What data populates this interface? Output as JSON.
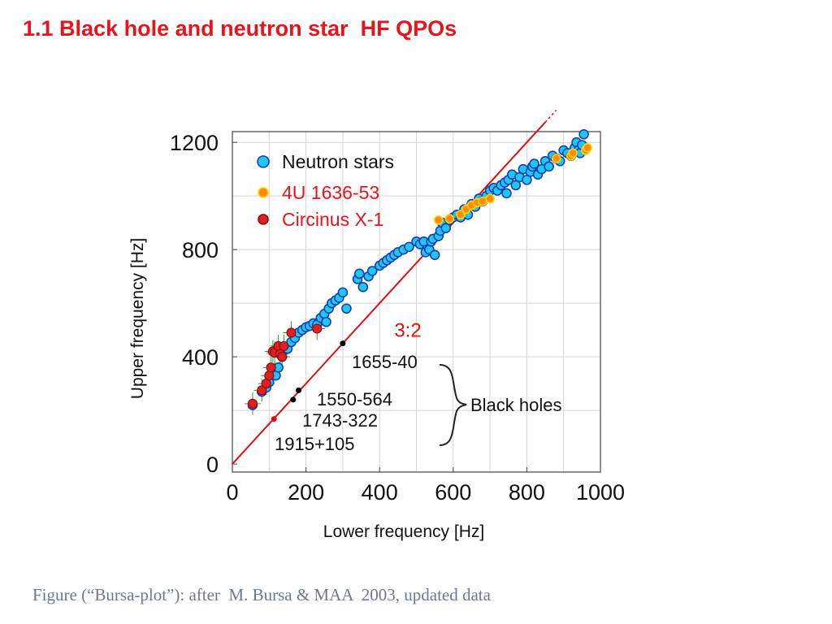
{
  "slide": {
    "title": "1.1 Black hole and neutron star  HF QPOs",
    "caption": "Figure (“Bursa-plot”): after  M. Bursa & MAA  2003, updated data"
  },
  "chart_data": {
    "type": "scatter",
    "title": "",
    "xlabel": "Lower frequency [Hz]",
    "ylabel": "Upper frequency [Hz]",
    "xlim": [
      0,
      1000
    ],
    "ylim": [
      -30,
      1240
    ],
    "xticks": [
      "0",
      "200",
      "400",
      "600",
      "800",
      "1000"
    ],
    "yticks": [
      "0",
      "400",
      "800",
      "1200"
    ],
    "ratio_line": {
      "label": "3:2",
      "slope": 1.5,
      "color": "#e01010"
    },
    "series": [
      {
        "name": "Neutron stars",
        "color": "#1ec8f5",
        "edge": "#1a3fb0",
        "x": [
          55,
          80,
          92,
          100,
          118,
          125,
          135,
          150,
          160,
          170,
          180,
          190,
          200,
          210,
          220,
          230,
          240,
          250,
          255,
          262,
          270,
          280,
          290,
          300,
          310,
          340,
          345,
          355,
          370,
          380,
          400,
          410,
          420,
          430,
          440,
          450,
          465,
          480,
          500,
          510,
          520,
          525,
          535,
          540,
          545,
          550,
          560,
          565,
          570,
          580,
          590,
          600,
          610,
          620,
          630,
          640,
          650,
          660,
          670,
          680,
          690,
          700,
          710,
          720,
          730,
          740,
          745,
          750,
          760,
          770,
          780,
          790,
          800,
          810,
          815,
          820,
          830,
          840,
          850,
          860,
          870,
          880,
          890,
          900,
          910,
          920,
          930,
          935,
          940,
          945,
          950,
          955
        ],
        "y": [
          220,
          270,
          285,
          305,
          330,
          360,
          400,
          430,
          455,
          470,
          490,
          500,
          510,
          515,
          525,
          520,
          545,
          560,
          530,
          580,
          600,
          610,
          620,
          640,
          580,
          690,
          710,
          660,
          700,
          720,
          740,
          750,
          760,
          770,
          780,
          790,
          800,
          810,
          830,
          820,
          830,
          790,
          800,
          830,
          840,
          780,
          850,
          870,
          900,
          880,
          910,
          920,
          930,
          920,
          950,
          930,
          970,
          960,
          990,
          980,
          1000,
          1020,
          1030,
          1020,
          1040,
          1050,
          1010,
          1060,
          1080,
          1040,
          1070,
          1100,
          1060,
          1090,
          1110,
          1120,
          1080,
          1100,
          1130,
          1110,
          1150,
          1140,
          1130,
          1170,
          1160,
          1150,
          1180,
          1200,
          1170,
          1160,
          1190,
          1230
        ]
      },
      {
        "name": "4U 1636-53",
        "color": "#ff8c00",
        "edge": "#ffd400",
        "x": [
          560,
          590,
          620,
          635,
          650,
          665,
          680,
          700,
          880,
          920,
          925,
          960,
          965
        ],
        "y": [
          910,
          915,
          930,
          950,
          965,
          975,
          980,
          990,
          1140,
          1150,
          1160,
          1170,
          1180
        ]
      },
      {
        "name": "Circinus X-1",
        "color": "#e02020",
        "edge": "#8b1010",
        "x": [
          55,
          80,
          92,
          100,
          105,
          110,
          115,
          125,
          130,
          135,
          140,
          160,
          230
        ],
        "y": [
          225,
          275,
          300,
          330,
          360,
          420,
          415,
          440,
          410,
          400,
          440,
          490,
          505
        ]
      },
      {
        "name": "Black holes",
        "color": "#000000",
        "edge": "#000000",
        "x": [
          165,
          180,
          300,
          113
        ],
        "y": [
          240,
          275,
          450,
          168
        ]
      }
    ],
    "black_hole_labels": [
      "1655-40",
      "1550-564",
      "1743-322",
      "1915+105"
    ],
    "black_hole_group_label": "Black holes"
  }
}
